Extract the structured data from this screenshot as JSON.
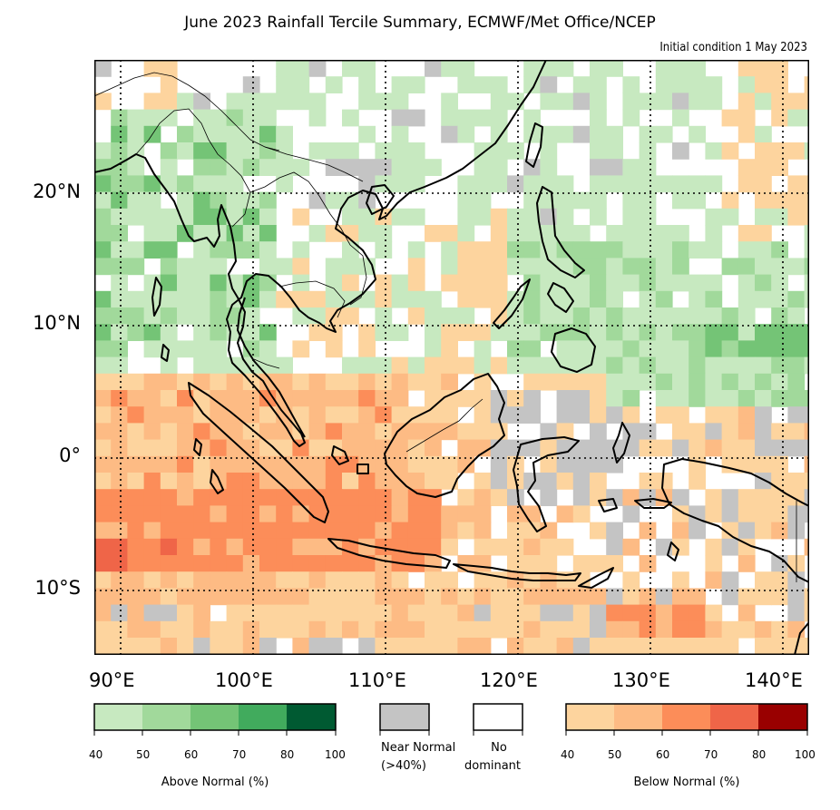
{
  "title": "June 2023 Rainfall Tercile Summary, ECMWF/Met Office/NCEP",
  "subtitle": "Initial condition 1 May 2023",
  "axes": {
    "lat_labels": [
      "20°N",
      "10°N",
      "0°",
      "10°S"
    ],
    "lon_labels": [
      "90°E",
      "100°E",
      "110°E",
      "120°E",
      "130°E",
      "140°E"
    ]
  },
  "colors": {
    "above": [
      "#c7e9c0",
      "#a1d99b",
      "#74c476",
      "#41ab5d",
      "#005a32"
    ],
    "near_normal": "#c4c4c4",
    "no_dominant": "#ffffff",
    "below": [
      "#fdd49e",
      "#fdbb84",
      "#fc8d59",
      "#ef6548",
      "#990000"
    ]
  },
  "legend": {
    "above_ticks": [
      "40",
      "50",
      "60",
      "70",
      "80",
      "100"
    ],
    "above_label": "Above Normal (%)",
    "near_normal_label_1": "Near Normal",
    "near_normal_label_2": "(>40%)",
    "no_dominant_label_1": "No",
    "no_dominant_label_2": "dominant",
    "below_ticks": [
      "40",
      "50",
      "60",
      "70",
      "80",
      "100"
    ],
    "below_label": "Below Normal (%)"
  }
}
